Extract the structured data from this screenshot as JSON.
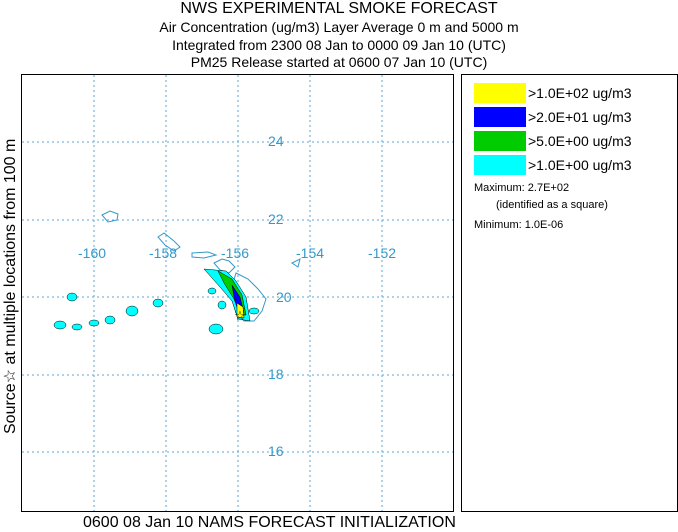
{
  "title": {
    "line1": "NWS EXPERIMENTAL SMOKE FORECAST",
    "line2": "Air Concentration (ug/m3) Layer Average    0 m and  5000 m",
    "line3": "Integrated from 2300 08 Jan to 0000 09 Jan 10 (UTC)",
    "line4": "PM25 Release started at 0600 07 Jan 10 (UTC)"
  },
  "side_label": "Source☆ at multiple locations     from   100 m",
  "footer": "0600 08 Jan 10 NAMS FORECAST INITIALIZATION",
  "map": {
    "lat_labels": [
      "24",
      "22",
      "20",
      "18",
      "16"
    ],
    "lon_labels": [
      "-160",
      "-158",
      "-156",
      "-154",
      "-152"
    ],
    "grid_color": "#5aa7d6",
    "label_color": "#3399cc",
    "coast_color": "#3399cc"
  },
  "legend": {
    "entries": [
      {
        "label": ">1.0E+02 ug/m3",
        "color": "#ffff00"
      },
      {
        "label": ">2.0E+01 ug/m3",
        "color": "#0000ff"
      },
      {
        "label": ">5.0E+00 ug/m3",
        "color": "#00cc00"
      },
      {
        "label": ">1.0E+00 ug/m3",
        "color": "#00ffff"
      }
    ],
    "maximum": "Maximum: 2.7E+02",
    "maximum_note": "(identified as a square)",
    "minimum": "Minimum: 1.0E-06"
  }
}
